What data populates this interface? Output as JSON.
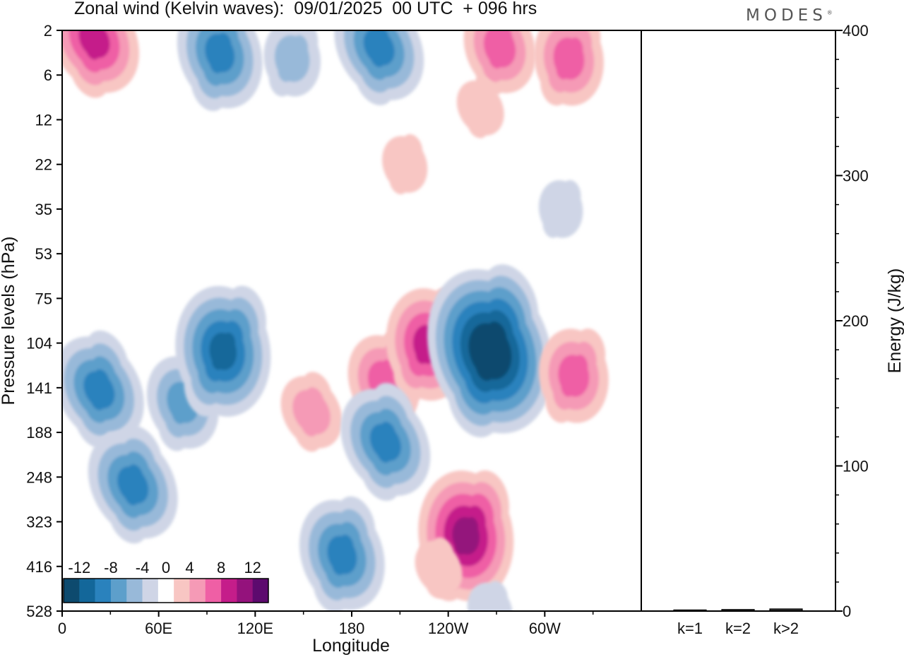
{
  "title": "Zonal wind (Kelvin waves):  09/01/2025  00 UTC  + 096 hrs",
  "brand": "MODES",
  "chart_data": [
    {
      "type": "heatmap",
      "title": "Zonal wind (Kelvin waves):  09/01/2025  00 UTC  + 096 hrs",
      "xlabel": "Longitude",
      "ylabel": "Pressure levels (hPa)",
      "x_ticks": [
        "0",
        "60E",
        "120E",
        "180",
        "120W",
        "60W"
      ],
      "y_ticks": [
        "2",
        "6",
        "12",
        "22",
        "35",
        "53",
        "75",
        "104",
        "141",
        "188",
        "248",
        "323",
        "416",
        "528"
      ],
      "colorbar": {
        "labels": [
          "-12",
          "-8",
          "-4",
          "0",
          "4",
          "8",
          "12"
        ],
        "levels": [
          -14,
          -12,
          -10,
          -8,
          -6,
          -4,
          -2,
          2,
          4,
          6,
          8,
          10,
          12,
          14
        ],
        "colors": [
          "#0d4a6e",
          "#13679a",
          "#2a82bd",
          "#5d9fcb",
          "#98b9d9",
          "#cfd5e6",
          "#ffffff",
          "#f8c6c3",
          "#f59ab6",
          "#ef5fa5",
          "#c51d8a",
          "#94127c",
          "#5d0a6e"
        ]
      },
      "features": [
        {
          "longitude": 20,
          "pressure_hPa": 2.5,
          "value": 8
        },
        {
          "longitude": 98,
          "pressure_hPa": 3.5,
          "value": -8
        },
        {
          "longitude": 143,
          "pressure_hPa": 4,
          "value": -4
        },
        {
          "longitude": 197,
          "pressure_hPa": 3,
          "value": -8
        },
        {
          "longitude": 272,
          "pressure_hPa": 3,
          "value": 6
        },
        {
          "longitude": 315,
          "pressure_hPa": 4,
          "value": 6
        },
        {
          "longitude": 260,
          "pressure_hPa": 10,
          "value": 2
        },
        {
          "longitude": 213,
          "pressure_hPa": 22,
          "value": 2
        },
        {
          "longitude": 310,
          "pressure_hPa": 35,
          "value": -2
        },
        {
          "longitude": 23,
          "pressure_hPa": 143,
          "value": -8
        },
        {
          "longitude": 75,
          "pressure_hPa": 155,
          "value": -6
        },
        {
          "longitude": 100,
          "pressure_hPa": 110,
          "value": -10
        },
        {
          "longitude": 155,
          "pressure_hPa": 165,
          "value": 4
        },
        {
          "longitude": 200,
          "pressure_hPa": 135,
          "value": 6
        },
        {
          "longitude": 227,
          "pressure_hPa": 105,
          "value": 8
        },
        {
          "longitude": 201,
          "pressure_hPa": 200,
          "value": -8
        },
        {
          "longitude": 266,
          "pressure_hPa": 110,
          "value": -14
        },
        {
          "longitude": 318,
          "pressure_hPa": 130,
          "value": 6
        },
        {
          "longitude": 44,
          "pressure_hPa": 260,
          "value": -8
        },
        {
          "longitude": 174,
          "pressure_hPa": 390,
          "value": -8
        },
        {
          "longitude": 251,
          "pressure_hPa": 350,
          "value": 10
        },
        {
          "longitude": 234,
          "pressure_hPa": 420,
          "value": 2
        },
        {
          "longitude": 266,
          "pressure_hPa": 528,
          "value": -2
        }
      ]
    },
    {
      "type": "bar",
      "categories": [
        "k=1",
        "k=2",
        "k>2"
      ],
      "values": [
        0.3,
        0.6,
        1.0
      ],
      "ylabel": "Energy (J/kg)",
      "ylim": [
        0,
        400
      ],
      "y_ticks": [
        "0",
        "100",
        "200",
        "300",
        "400"
      ]
    }
  ]
}
